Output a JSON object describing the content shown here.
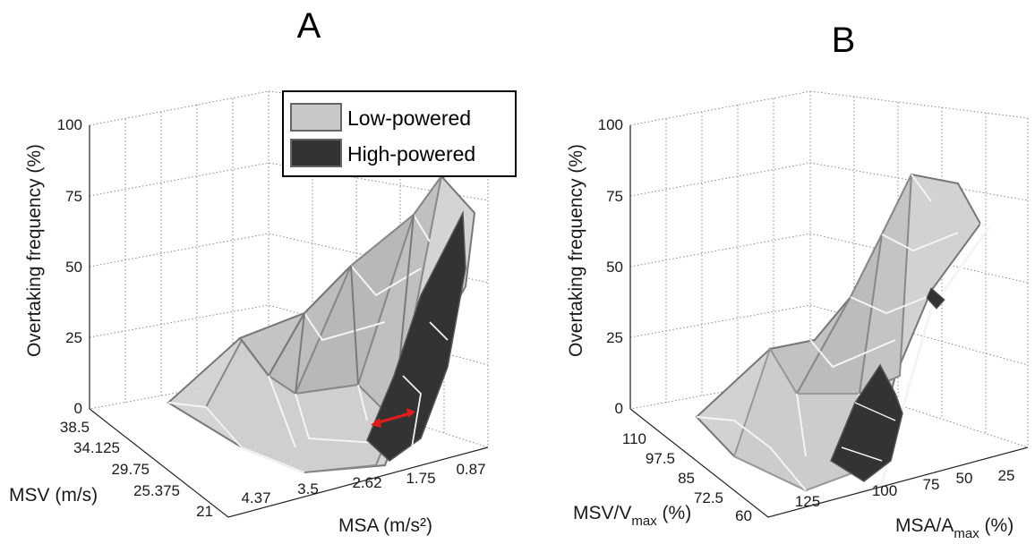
{
  "chart_data": [
    {
      "type": "surface",
      "panel_label": "A",
      "zlabel": "Overtaking frequency (%)",
      "xlabel": "MSV (m/s)",
      "ylabel": "MSA (m/s²)",
      "zticks": [
        "0",
        "25",
        "50",
        "75",
        "100"
      ],
      "xticks": [
        "21",
        "25.375",
        "29.75",
        "34.125",
        "38.5"
      ],
      "yticks": [
        "4.37",
        "3.5",
        "2.62",
        "1.75",
        "0.87"
      ],
      "zlim": [
        0,
        100
      ],
      "legend": {
        "position": "top-right",
        "entries": [
          {
            "name": "Low-powered",
            "color": "#c8c8c8"
          },
          {
            "name": "High-powered",
            "color": "#333333"
          }
        ]
      },
      "series": [
        {
          "name": "Low-powered",
          "color": "#c8c8c8"
        },
        {
          "name": "High-powered",
          "color": "#333333"
        }
      ],
      "annotation": {
        "type": "double-arrow",
        "color": "#e31b1b"
      }
    },
    {
      "type": "surface",
      "panel_label": "B",
      "zlabel": "Overtaking frequency (%)",
      "xlabel_main": "MSV/V",
      "xlabel_sub": "max",
      "xlabel_unit": " (%)",
      "ylabel_main": "MSA/A",
      "ylabel_sub": "max",
      "ylabel_unit": " (%)",
      "zticks": [
        "0",
        "25",
        "50",
        "75",
        "100"
      ],
      "xticks": [
        "60",
        "72.5",
        "85",
        "97.5",
        "110"
      ],
      "yticks": [
        "125",
        "100",
        "75",
        "50",
        "25"
      ],
      "zlim": [
        0,
        100
      ],
      "series": [
        {
          "name": "Low-powered",
          "color": "#c8c8c8"
        },
        {
          "name": "High-powered",
          "color": "#333333"
        }
      ]
    }
  ]
}
